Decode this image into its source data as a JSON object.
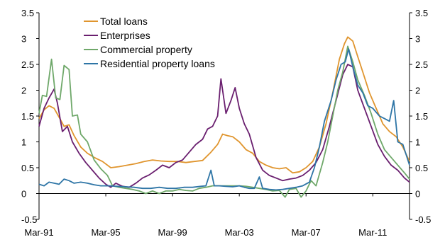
{
  "chart_data": {
    "type": "line",
    "title": "",
    "xlabel": "",
    "ylabel": "",
    "ylim": [
      -0.5,
      3.5
    ],
    "yticks": [
      "3.5",
      "3",
      "2.5",
      "2",
      "1.5",
      "1",
      "0.5",
      "0",
      "-0.5"
    ],
    "yticks_right": [
      "3.5",
      "3",
      "2.5",
      "2",
      "1.5",
      "1",
      "0.5",
      "0",
      "-0.5"
    ],
    "xticks": [
      "Mar-91",
      "Mar-95",
      "Mar-99",
      "Mar-03",
      "Mar-07",
      "Mar-11"
    ],
    "x_start_year": 1991,
    "x_end_year": 2013.2,
    "grid": false,
    "legend_position": "top-left",
    "series": [
      {
        "name": "Total loans",
        "color": "#E0952E",
        "points": [
          [
            1991.0,
            1.45
          ],
          [
            1991.3,
            1.62
          ],
          [
            1991.6,
            1.7
          ],
          [
            1991.9,
            1.65
          ],
          [
            1992.2,
            1.48
          ],
          [
            1992.5,
            1.3
          ],
          [
            1992.8,
            1.33
          ],
          [
            1993.1,
            1.12
          ],
          [
            1993.5,
            0.9
          ],
          [
            1993.9,
            0.78
          ],
          [
            1994.3,
            0.7
          ],
          [
            1994.8,
            0.62
          ],
          [
            1995.3,
            0.5
          ],
          [
            1995.8,
            0.52
          ],
          [
            1996.3,
            0.55
          ],
          [
            1996.8,
            0.58
          ],
          [
            1997.3,
            0.62
          ],
          [
            1997.8,
            0.65
          ],
          [
            1998.3,
            0.63
          ],
          [
            1998.8,
            0.62
          ],
          [
            1999.3,
            0.62
          ],
          [
            1999.8,
            0.6
          ],
          [
            2000.3,
            0.62
          ],
          [
            2000.8,
            0.64
          ],
          [
            2001.3,
            0.8
          ],
          [
            2001.7,
            0.95
          ],
          [
            2002.0,
            1.15
          ],
          [
            2002.3,
            1.12
          ],
          [
            2002.6,
            1.1
          ],
          [
            2003.0,
            1.0
          ],
          [
            2003.4,
            0.85
          ],
          [
            2003.8,
            0.78
          ],
          [
            2004.2,
            0.62
          ],
          [
            2004.6,
            0.55
          ],
          [
            2005.0,
            0.5
          ],
          [
            2005.4,
            0.48
          ],
          [
            2005.8,
            0.5
          ],
          [
            2006.2,
            0.4
          ],
          [
            2006.6,
            0.42
          ],
          [
            2007.0,
            0.5
          ],
          [
            2007.4,
            0.62
          ],
          [
            2007.8,
            0.9
          ],
          [
            2008.2,
            1.35
          ],
          [
            2008.6,
            1.95
          ],
          [
            2009.0,
            2.6
          ],
          [
            2009.3,
            2.9
          ],
          [
            2009.5,
            3.03
          ],
          [
            2009.8,
            2.95
          ],
          [
            2010.1,
            2.65
          ],
          [
            2010.4,
            2.35
          ],
          [
            2010.8,
            1.95
          ],
          [
            2011.2,
            1.65
          ],
          [
            2011.6,
            1.35
          ],
          [
            2012.0,
            1.2
          ],
          [
            2012.4,
            1.1
          ],
          [
            2012.8,
            0.9
          ],
          [
            2013.2,
            0.62
          ]
        ]
      },
      {
        "name": "Enterprises",
        "color": "#6A1F6F",
        "points": [
          [
            1991.0,
            1.3
          ],
          [
            1991.3,
            1.65
          ],
          [
            1991.6,
            1.85
          ],
          [
            1991.9,
            2.02
          ],
          [
            1992.1,
            1.75
          ],
          [
            1992.4,
            1.2
          ],
          [
            1992.7,
            1.3
          ],
          [
            1993.0,
            1.0
          ],
          [
            1993.4,
            0.78
          ],
          [
            1993.8,
            0.6
          ],
          [
            1994.2,
            0.45
          ],
          [
            1994.6,
            0.3
          ],
          [
            1995.0,
            0.18
          ],
          [
            1995.3,
            0.12
          ],
          [
            1995.6,
            0.2
          ],
          [
            1996.0,
            0.14
          ],
          [
            1996.4,
            0.12
          ],
          [
            1996.8,
            0.2
          ],
          [
            1997.2,
            0.3
          ],
          [
            1997.6,
            0.36
          ],
          [
            1998.0,
            0.45
          ],
          [
            1998.4,
            0.55
          ],
          [
            1998.8,
            0.5
          ],
          [
            1999.2,
            0.6
          ],
          [
            1999.6,
            0.65
          ],
          [
            2000.0,
            0.8
          ],
          [
            2000.4,
            0.95
          ],
          [
            2000.8,
            1.05
          ],
          [
            2001.1,
            1.25
          ],
          [
            2001.4,
            1.3
          ],
          [
            2001.7,
            1.5
          ],
          [
            2001.9,
            2.22
          ],
          [
            2002.2,
            1.55
          ],
          [
            2002.5,
            1.8
          ],
          [
            2002.75,
            2.05
          ],
          [
            2003.0,
            1.65
          ],
          [
            2003.3,
            1.35
          ],
          [
            2003.6,
            1.15
          ],
          [
            2004.0,
            0.7
          ],
          [
            2004.4,
            0.45
          ],
          [
            2004.8,
            0.35
          ],
          [
            2005.2,
            0.3
          ],
          [
            2005.6,
            0.25
          ],
          [
            2006.0,
            0.28
          ],
          [
            2006.4,
            0.3
          ],
          [
            2006.8,
            0.35
          ],
          [
            2007.2,
            0.45
          ],
          [
            2007.6,
            0.6
          ],
          [
            2008.0,
            0.85
          ],
          [
            2008.4,
            1.3
          ],
          [
            2008.8,
            1.8
          ],
          [
            2009.2,
            2.3
          ],
          [
            2009.5,
            2.5
          ],
          [
            2009.8,
            2.45
          ],
          [
            2010.1,
            2.0
          ],
          [
            2010.5,
            1.65
          ],
          [
            2010.9,
            1.3
          ],
          [
            2011.3,
            0.95
          ],
          [
            2011.7,
            0.72
          ],
          [
            2012.1,
            0.55
          ],
          [
            2012.5,
            0.45
          ],
          [
            2012.9,
            0.3
          ],
          [
            2013.2,
            0.22
          ]
        ]
      },
      {
        "name": "Commercial property",
        "color": "#6FA86A",
        "points": [
          [
            1991.0,
            1.55
          ],
          [
            1991.2,
            1.9
          ],
          [
            1991.45,
            1.88
          ],
          [
            1991.75,
            2.6
          ],
          [
            1992.0,
            1.85
          ],
          [
            1992.25,
            1.82
          ],
          [
            1992.5,
            2.48
          ],
          [
            1992.8,
            2.4
          ],
          [
            1993.0,
            1.5
          ],
          [
            1993.3,
            1.52
          ],
          [
            1993.5,
            1.15
          ],
          [
            1993.9,
            1.0
          ],
          [
            1994.3,
            0.65
          ],
          [
            1994.7,
            0.48
          ],
          [
            1995.1,
            0.35
          ],
          [
            1995.4,
            0.15
          ],
          [
            1995.8,
            0.12
          ],
          [
            1996.2,
            0.1
          ],
          [
            1996.6,
            0.08
          ],
          [
            1997.0,
            0.05
          ],
          [
            1997.4,
            0.0
          ],
          [
            1997.8,
            0.05
          ],
          [
            1998.2,
            0.0
          ],
          [
            1998.6,
            0.05
          ],
          [
            1999.0,
            0.05
          ],
          [
            1999.4,
            0.08
          ],
          [
            1999.8,
            0.06
          ],
          [
            2000.2,
            0.05
          ],
          [
            2000.6,
            0.1
          ],
          [
            2001.0,
            0.12
          ],
          [
            2001.4,
            0.15
          ],
          [
            2001.8,
            0.15
          ],
          [
            2002.2,
            0.15
          ],
          [
            2002.6,
            0.15
          ],
          [
            2003.0,
            0.15
          ],
          [
            2003.4,
            0.14
          ],
          [
            2003.8,
            0.12
          ],
          [
            2004.2,
            0.1
          ],
          [
            2004.6,
            0.08
          ],
          [
            2005.0,
            0.05
          ],
          [
            2005.4,
            0.06
          ],
          [
            2005.75,
            -0.07
          ],
          [
            2006.0,
            0.08
          ],
          [
            2006.4,
            0.1
          ],
          [
            2006.7,
            -0.07
          ],
          [
            2007.0,
            0.05
          ],
          [
            2007.3,
            0.25
          ],
          [
            2007.6,
            0.15
          ],
          [
            2008.0,
            0.6
          ],
          [
            2008.3,
            1.0
          ],
          [
            2008.6,
            1.5
          ],
          [
            2008.9,
            2.0
          ],
          [
            2009.2,
            2.35
          ],
          [
            2009.5,
            2.85
          ],
          [
            2009.8,
            2.55
          ],
          [
            2010.1,
            2.2
          ],
          [
            2010.5,
            1.9
          ],
          [
            2010.9,
            1.55
          ],
          [
            2011.3,
            1.15
          ],
          [
            2011.7,
            0.85
          ],
          [
            2012.1,
            0.7
          ],
          [
            2012.5,
            0.55
          ],
          [
            2012.9,
            0.4
          ],
          [
            2013.2,
            0.28
          ]
        ]
      },
      {
        "name": "Residential property loans",
        "color": "#2E75A6",
        "points": [
          [
            1991.0,
            0.18
          ],
          [
            1991.3,
            0.15
          ],
          [
            1991.6,
            0.22
          ],
          [
            1991.9,
            0.2
          ],
          [
            1992.2,
            0.18
          ],
          [
            1992.5,
            0.28
          ],
          [
            1992.8,
            0.25
          ],
          [
            1993.1,
            0.2
          ],
          [
            1993.5,
            0.22
          ],
          [
            1993.9,
            0.2
          ],
          [
            1994.3,
            0.17
          ],
          [
            1994.7,
            0.15
          ],
          [
            1995.2,
            0.15
          ],
          [
            1995.7,
            0.14
          ],
          [
            1996.2,
            0.13
          ],
          [
            1996.7,
            0.12
          ],
          [
            1997.2,
            0.1
          ],
          [
            1997.7,
            0.1
          ],
          [
            1998.2,
            0.12
          ],
          [
            1998.7,
            0.1
          ],
          [
            1999.2,
            0.1
          ],
          [
            1999.7,
            0.12
          ],
          [
            2000.2,
            0.12
          ],
          [
            2000.7,
            0.14
          ],
          [
            2001.0,
            0.15
          ],
          [
            2001.3,
            0.45
          ],
          [
            2001.5,
            0.15
          ],
          [
            2001.8,
            0.15
          ],
          [
            2002.2,
            0.14
          ],
          [
            2002.6,
            0.13
          ],
          [
            2003.0,
            0.15
          ],
          [
            2003.3,
            0.12
          ],
          [
            2003.6,
            0.1
          ],
          [
            2003.9,
            0.1
          ],
          [
            2004.2,
            0.32
          ],
          [
            2004.4,
            0.1
          ],
          [
            2004.8,
            0.08
          ],
          [
            2005.2,
            0.07
          ],
          [
            2005.6,
            0.08
          ],
          [
            2006.0,
            0.1
          ],
          [
            2006.4,
            0.12
          ],
          [
            2006.8,
            0.15
          ],
          [
            2007.2,
            0.22
          ],
          [
            2007.5,
            0.5
          ],
          [
            2007.8,
            0.9
          ],
          [
            2008.1,
            1.4
          ],
          [
            2008.5,
            1.8
          ],
          [
            2008.8,
            2.2
          ],
          [
            2009.1,
            2.5
          ],
          [
            2009.35,
            2.55
          ],
          [
            2009.55,
            2.8
          ],
          [
            2009.8,
            2.45
          ],
          [
            2010.1,
            2.1
          ],
          [
            2010.4,
            1.95
          ],
          [
            2010.7,
            1.7
          ],
          [
            2011.0,
            1.65
          ],
          [
            2011.4,
            1.5
          ],
          [
            2011.7,
            1.45
          ],
          [
            2012.0,
            1.4
          ],
          [
            2012.25,
            1.8
          ],
          [
            2012.5,
            1.0
          ],
          [
            2012.8,
            0.95
          ],
          [
            2013.2,
            0.55
          ]
        ]
      }
    ]
  }
}
